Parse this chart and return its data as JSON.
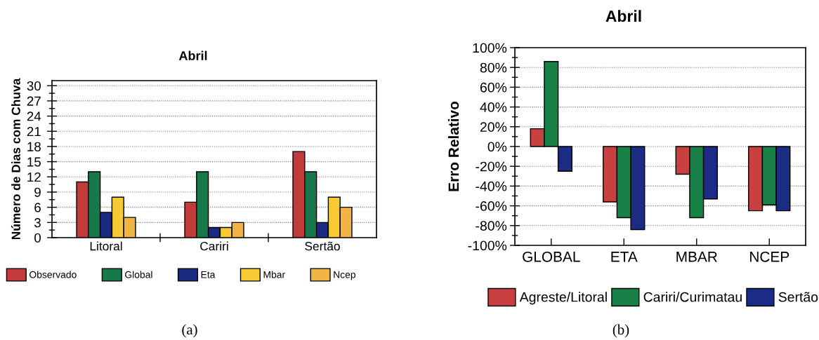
{
  "chart_data": [
    {
      "type": "bar",
      "title": "Abril",
      "ylabel": "Número de Dias com Chuva",
      "categories": [
        "Litoral",
        "Cariri",
        "Sertão"
      ],
      "series": [
        {
          "name": "Observado",
          "color": "#c23b3b",
          "values": [
            11,
            7,
            17
          ]
        },
        {
          "name": "Global",
          "color": "#17794a",
          "values": [
            13,
            13,
            13
          ]
        },
        {
          "name": "Eta",
          "color": "#1a2a80",
          "values": [
            5,
            2,
            3
          ]
        },
        {
          "name": "Mbar",
          "color": "#f6c935",
          "values": [
            8,
            2,
            8
          ]
        },
        {
          "name": "Ncep",
          "color": "#f1b444",
          "values": [
            4,
            3,
            6
          ]
        }
      ],
      "ylim": [
        0,
        31
      ],
      "yticks": [
        0,
        3,
        6,
        9,
        12,
        15,
        18,
        21,
        24,
        27,
        30
      ],
      "grid": "y",
      "legend": "bottom",
      "annotations": [
        "(a)"
      ]
    },
    {
      "type": "bar",
      "title": "Abril",
      "ylabel": "Erro Relativo",
      "categories": [
        "GLOBAL",
        "ETA",
        "MBAR",
        "NCEP"
      ],
      "series": [
        {
          "name": "Agreste/Litoral",
          "color": "#c84040",
          "values": [
            18,
            -56,
            -28,
            -65
          ]
        },
        {
          "name": "Cariri/Curimatau",
          "color": "#198048",
          "values": [
            86,
            -72,
            -72,
            -59
          ]
        },
        {
          "name": "Sertão",
          "color": "#1c2c85",
          "values": [
            -25,
            -84,
            -53,
            -65
          ]
        }
      ],
      "ylim": [
        -100,
        100
      ],
      "yticks": [
        {
          "value": -100,
          "label": "-100%"
        },
        {
          "value": -80,
          "label": "-80%"
        },
        {
          "value": -60,
          "label": "-60%"
        },
        {
          "value": -40,
          "label": "-40%"
        },
        {
          "value": -20,
          "label": "-20%"
        },
        {
          "value": 0,
          "label": "0%"
        },
        {
          "value": 20,
          "label": "20%"
        },
        {
          "value": 40,
          "label": "40%"
        },
        {
          "value": 60,
          "label": "60%"
        },
        {
          "value": 80,
          "label": "80%"
        },
        {
          "value": 100,
          "label": "100%"
        }
      ],
      "grid": "y",
      "legend": "bottom",
      "annotations": [
        "(b)"
      ]
    }
  ]
}
